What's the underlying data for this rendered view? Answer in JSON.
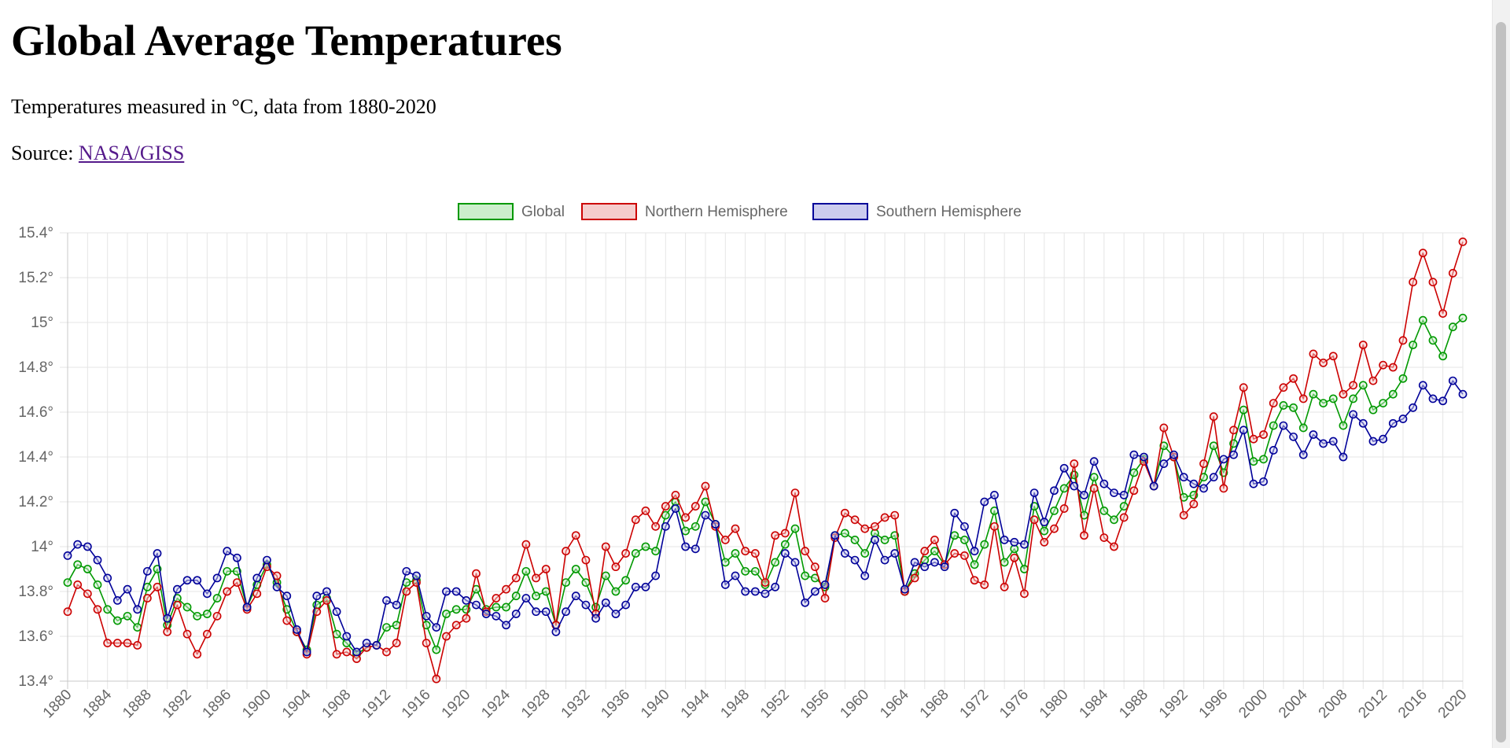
{
  "page": {
    "title": "Global Average Temperatures",
    "subtitle": "Temperatures measured in °C, data from 1880-2020",
    "source_prefix": "Source: ",
    "source_link": "NASA/GISS"
  },
  "chart_data": {
    "type": "line",
    "ylim": [
      13.4,
      15.4
    ],
    "yticks": [
      13.4,
      13.6,
      13.8,
      14,
      14.2,
      14.4,
      14.6,
      14.8,
      15,
      15.2,
      15.4
    ],
    "ytick_suffix": "°",
    "xlim": [
      1880,
      2020
    ],
    "xticks": [
      1880,
      1884,
      1888,
      1892,
      1896,
      1900,
      1904,
      1908,
      1912,
      1916,
      1920,
      1924,
      1928,
      1932,
      1936,
      1940,
      1944,
      1948,
      1952,
      1956,
      1960,
      1964,
      1968,
      1972,
      1976,
      1980,
      1984,
      1988,
      1992,
      1996,
      2000,
      2004,
      2008,
      2012,
      2016,
      2020
    ],
    "grid": true,
    "legend_position": "top",
    "x_start": 1880,
    "series": [
      {
        "name": "Global",
        "color": "#009900",
        "fill": "#cceecc",
        "values": [
          13.84,
          13.92,
          13.9,
          13.83,
          13.72,
          13.67,
          13.69,
          13.64,
          13.82,
          13.9,
          13.65,
          13.77,
          13.73,
          13.69,
          13.7,
          13.77,
          13.89,
          13.89,
          13.73,
          13.83,
          13.92,
          13.84,
          13.72,
          13.62,
          13.54,
          13.74,
          13.77,
          13.61,
          13.57,
          13.52,
          13.55,
          13.56,
          13.64,
          13.65,
          13.84,
          13.85,
          13.65,
          13.54,
          13.7,
          13.72,
          13.72,
          13.81,
          13.72,
          13.73,
          13.73,
          13.78,
          13.89,
          13.78,
          13.8,
          13.65,
          13.84,
          13.9,
          13.84,
          13.73,
          13.87,
          13.8,
          13.85,
          13.97,
          14.0,
          13.98,
          14.14,
          14.2,
          14.07,
          14.09,
          14.2,
          14.1,
          13.93,
          13.97,
          13.89,
          13.89,
          13.83,
          13.93,
          14.01,
          14.08,
          13.87,
          13.86,
          13.82,
          14.05,
          14.06,
          14.03,
          13.97,
          14.06,
          14.03,
          14.05,
          13.8,
          13.88,
          13.94,
          13.98,
          13.92,
          14.05,
          14.03,
          13.92,
          14.01,
          14.16,
          13.93,
          13.99,
          13.9,
          14.18,
          14.07,
          14.16,
          14.26,
          14.32,
          14.14,
          14.31,
          14.16,
          14.12,
          14.18,
          14.33,
          14.39,
          14.27,
          14.45,
          14.4,
          14.22,
          14.23,
          14.31,
          14.45,
          14.33,
          14.46,
          14.61,
          14.38,
          14.39,
          14.54,
          14.63,
          14.62,
          14.53,
          14.68,
          14.64,
          14.66,
          14.54,
          14.66,
          14.72,
          14.61,
          14.64,
          14.68,
          14.75,
          14.9,
          15.01,
          14.92,
          14.85,
          14.98,
          15.02
        ]
      },
      {
        "name": "Northern Hemisphere",
        "color": "#cc0000",
        "fill": "#f5cccc",
        "values": [
          13.71,
          13.83,
          13.79,
          13.72,
          13.57,
          13.57,
          13.57,
          13.56,
          13.77,
          13.82,
          13.62,
          13.74,
          13.61,
          13.52,
          13.61,
          13.69,
          13.8,
          13.84,
          13.72,
          13.79,
          13.91,
          13.87,
          13.67,
          13.62,
          13.52,
          13.71,
          13.76,
          13.52,
          13.53,
          13.5,
          13.55,
          13.56,
          13.53,
          13.57,
          13.8,
          13.84,
          13.57,
          13.41,
          13.6,
          13.65,
          13.68,
          13.88,
          13.71,
          13.77,
          13.81,
          13.86,
          14.01,
          13.86,
          13.9,
          13.65,
          13.98,
          14.05,
          13.94,
          13.7,
          14.0,
          13.91,
          13.97,
          14.12,
          14.16,
          14.09,
          14.18,
          14.23,
          14.13,
          14.18,
          14.27,
          14.09,
          14.03,
          14.08,
          13.98,
          13.97,
          13.84,
          14.05,
          14.06,
          14.24,
          13.98,
          13.91,
          13.77,
          14.04,
          14.15,
          14.12,
          14.08,
          14.09,
          14.13,
          14.14,
          13.8,
          13.86,
          13.98,
          14.03,
          13.92,
          13.97,
          13.96,
          13.85,
          13.83,
          14.09,
          13.82,
          13.95,
          13.79,
          14.12,
          14.02,
          14.08,
          14.17,
          14.37,
          14.05,
          14.26,
          14.04,
          14.0,
          14.13,
          14.25,
          14.38,
          14.27,
          14.53,
          14.4,
          14.14,
          14.19,
          14.37,
          14.58,
          14.26,
          14.52,
          14.71,
          14.48,
          14.5,
          14.64,
          14.71,
          14.75,
          14.66,
          14.86,
          14.82,
          14.85,
          14.68,
          14.72,
          14.9,
          14.74,
          14.81,
          14.8,
          14.92,
          15.18,
          15.31,
          15.18,
          15.04,
          15.22,
          15.36
        ]
      },
      {
        "name": "Southern Hemisphere",
        "color": "#000099",
        "fill": "#ccccee",
        "values": [
          13.96,
          14.01,
          14.0,
          13.94,
          13.86,
          13.76,
          13.81,
          13.72,
          13.89,
          13.97,
          13.68,
          13.81,
          13.85,
          13.85,
          13.79,
          13.86,
          13.98,
          13.95,
          13.73,
          13.86,
          13.94,
          13.82,
          13.78,
          13.63,
          13.53,
          13.78,
          13.8,
          13.71,
          13.6,
          13.53,
          13.57,
          13.56,
          13.76,
          13.74,
          13.89,
          13.87,
          13.69,
          13.64,
          13.8,
          13.8,
          13.76,
          13.74,
          13.7,
          13.69,
          13.65,
          13.7,
          13.77,
          13.71,
          13.71,
          13.62,
          13.71,
          13.78,
          13.74,
          13.68,
          13.75,
          13.7,
          13.74,
          13.82,
          13.82,
          13.87,
          14.09,
          14.17,
          14.0,
          13.99,
          14.14,
          14.1,
          13.83,
          13.87,
          13.8,
          13.8,
          13.79,
          13.82,
          13.97,
          13.93,
          13.75,
          13.8,
          13.83,
          14.05,
          13.97,
          13.94,
          13.87,
          14.03,
          13.94,
          13.97,
          13.81,
          13.93,
          13.91,
          13.93,
          13.91,
          14.15,
          14.09,
          13.98,
          14.2,
          14.23,
          14.03,
          14.02,
          14.01,
          14.24,
          14.11,
          14.25,
          14.35,
          14.27,
          14.23,
          14.38,
          14.28,
          14.24,
          14.23,
          14.41,
          14.4,
          14.27,
          14.37,
          14.41,
          14.31,
          14.28,
          14.26,
          14.31,
          14.39,
          14.41,
          14.52,
          14.28,
          14.29,
          14.43,
          14.54,
          14.49,
          14.41,
          14.5,
          14.46,
          14.47,
          14.4,
          14.59,
          14.55,
          14.47,
          14.48,
          14.55,
          14.57,
          14.62,
          14.72,
          14.66,
          14.65,
          14.74,
          14.68
        ]
      }
    ]
  }
}
